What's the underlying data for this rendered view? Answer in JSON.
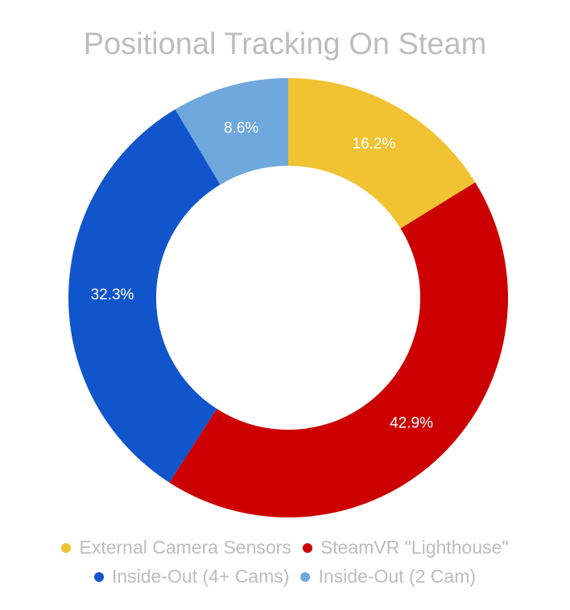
{
  "chart_data": {
    "type": "pie",
    "title": "Positional Tracking On Steam",
    "donut": true,
    "legend_placement": "bottom",
    "slices": [
      {
        "name": "External Camera Sensors",
        "value": 16.2,
        "label": "16.2%",
        "color": "#f1c232"
      },
      {
        "name": "SteamVR \"Lighthouse\"",
        "value": 42.9,
        "label": "42.9%",
        "color": "#cc0000"
      },
      {
        "name": "Inside-Out (4+ Cams)",
        "value": 32.3,
        "label": "32.3%",
        "color": "#1155cc"
      },
      {
        "name": "Inside-Out (2 Cam)",
        "value": 8.6,
        "label": "8.6%",
        "color": "#6fa8dc"
      }
    ]
  }
}
